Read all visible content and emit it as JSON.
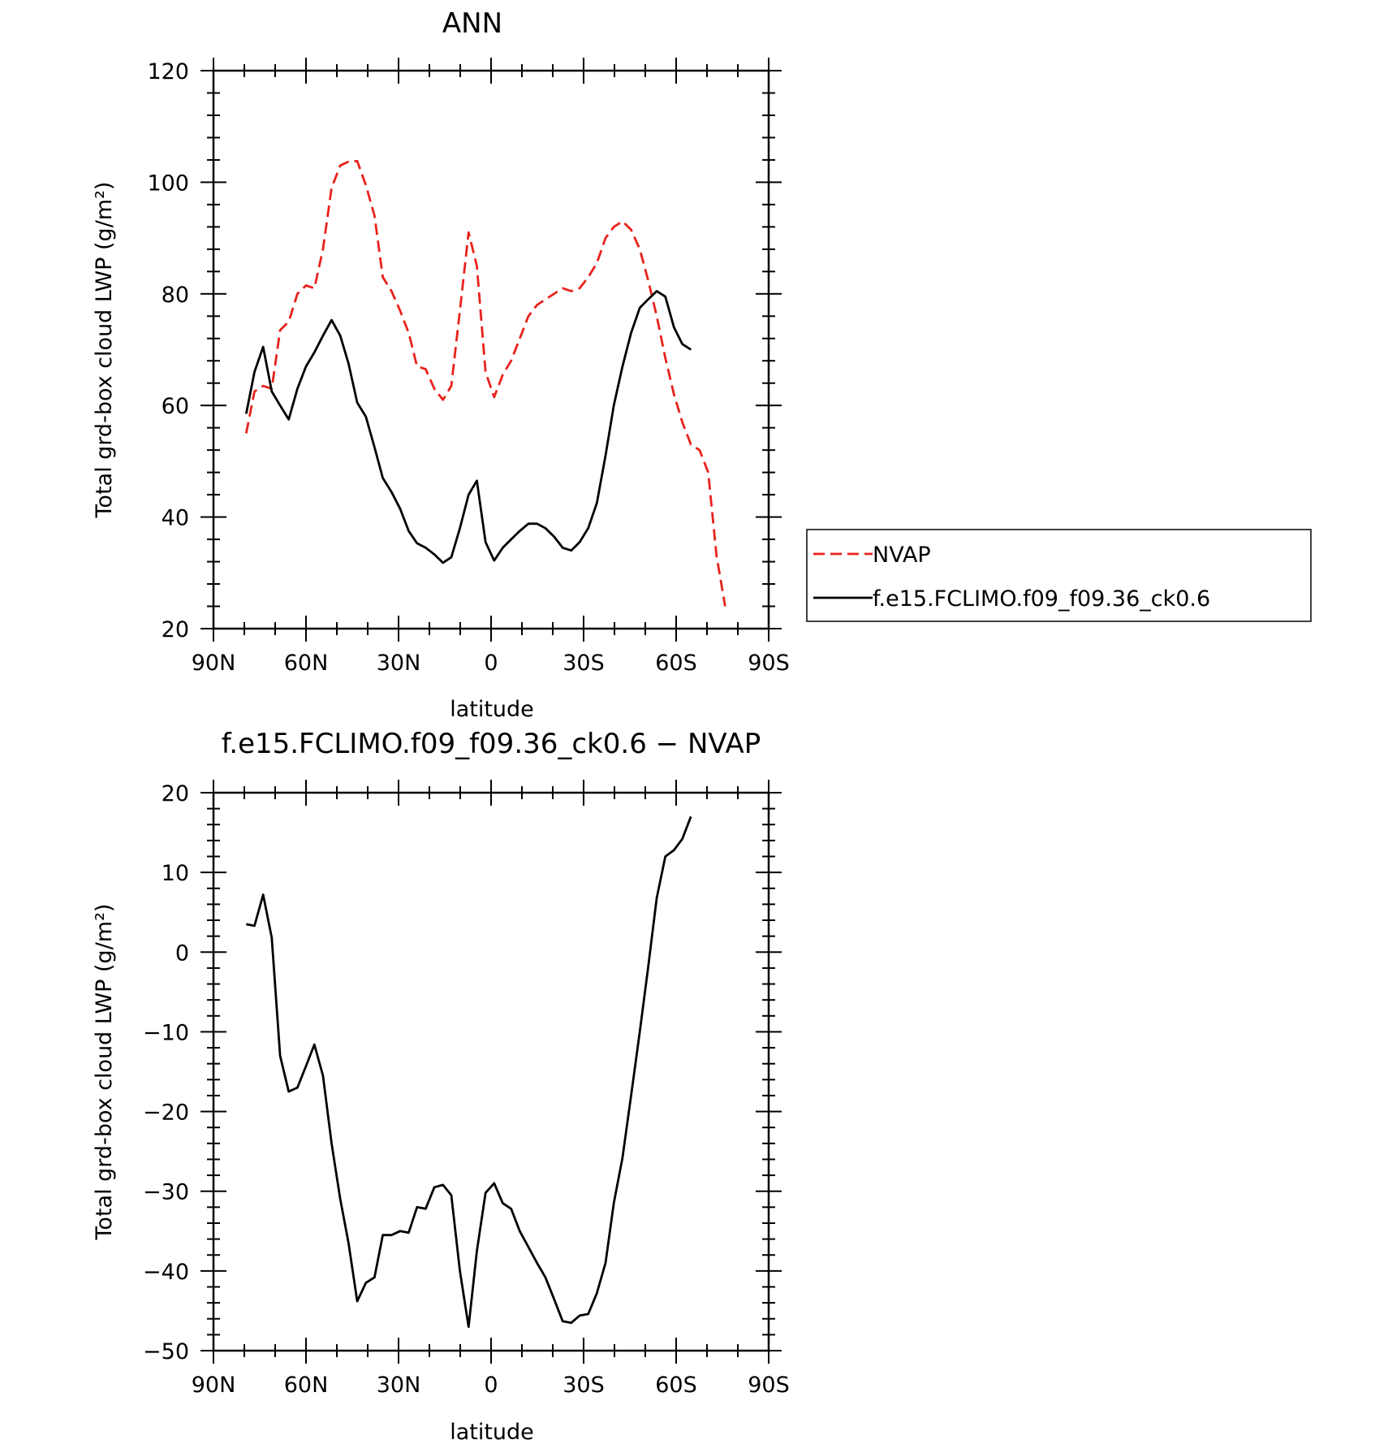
{
  "chart_data": [
    {
      "type": "line",
      "title": "ANN",
      "xlabel": "latitude",
      "ylabel": "Total grd-box cloud LWP (g/m²)",
      "xlim": [
        90,
        -90
      ],
      "ylim": [
        20,
        120
      ],
      "yticks": [
        20,
        40,
        60,
        80,
        100,
        120
      ],
      "xticks": [
        {
          "value": 90,
          "label": "90N"
        },
        {
          "value": 60,
          "label": "60N"
        },
        {
          "value": 30,
          "label": "30N"
        },
        {
          "value": 0,
          "label": "0"
        },
        {
          "value": -30,
          "label": "30S"
        },
        {
          "value": -60,
          "label": "60S"
        },
        {
          "value": -90,
          "label": "90S"
        }
      ],
      "grid": false,
      "legend": "right",
      "series": [
        {
          "name": "NVAP",
          "color": "#e8221c",
          "dash": true,
          "points": [
            [
              79.4,
              55
            ],
            [
              76.7,
              62.5
            ],
            [
              73.9,
              63.5
            ],
            [
              71.1,
              63
            ],
            [
              68.4,
              73.5
            ],
            [
              65.6,
              75
            ],
            [
              62.8,
              80
            ],
            [
              60.0,
              81.5
            ],
            [
              57.3,
              81
            ],
            [
              54.5,
              88
            ],
            [
              51.7,
              99
            ],
            [
              48.9,
              103
            ],
            [
              46.2,
              103.7
            ],
            [
              43.4,
              103.8
            ],
            [
              40.6,
              99.5
            ],
            [
              37.8,
              94
            ],
            [
              35.1,
              83
            ],
            [
              32.3,
              80.5
            ],
            [
              29.5,
              77
            ],
            [
              26.7,
              73
            ],
            [
              24.0,
              67
            ],
            [
              21.2,
              66.5
            ],
            [
              18.4,
              63
            ],
            [
              15.6,
              61
            ],
            [
              12.9,
              63.5
            ],
            [
              10.1,
              77
            ],
            [
              7.3,
              91
            ],
            [
              4.6,
              85
            ],
            [
              1.8,
              66
            ],
            [
              -1.0,
              61.5
            ],
            [
              -3.8,
              65.5
            ],
            [
              -6.5,
              68
            ],
            [
              -9.3,
              72
            ],
            [
              -12.1,
              76
            ],
            [
              -14.9,
              78
            ],
            [
              -17.6,
              79
            ],
            [
              -20.4,
              80
            ],
            [
              -23.2,
              81
            ],
            [
              -26.0,
              80.5
            ],
            [
              -28.7,
              81
            ],
            [
              -31.5,
              83
            ],
            [
              -34.3,
              85.5
            ],
            [
              -37.1,
              90
            ],
            [
              -39.8,
              92
            ],
            [
              -42.6,
              93
            ],
            [
              -45.4,
              91.5
            ],
            [
              -48.2,
              88
            ],
            [
              -50.9,
              82.5
            ],
            [
              -53.7,
              76
            ],
            [
              -56.5,
              68.5
            ],
            [
              -59.3,
              62
            ],
            [
              -62.0,
              57
            ],
            [
              -64.8,
              53
            ],
            [
              -67.6,
              52
            ],
            [
              -70.4,
              48
            ],
            [
              -73.1,
              33
            ],
            [
              -75.9,
              24
            ]
          ]
        },
        {
          "name": "f.e15.FCLIMO.f09_f09.36_ck0.6",
          "color": "#000000",
          "dash": false,
          "points": [
            [
              79.4,
              58.5
            ],
            [
              76.7,
              66
            ],
            [
              73.9,
              70.5
            ],
            [
              71.1,
              62.5
            ],
            [
              68.4,
              60
            ],
            [
              65.6,
              57.5
            ],
            [
              62.8,
              63
            ],
            [
              60.0,
              67
            ],
            [
              57.3,
              69.5
            ],
            [
              54.5,
              72.5
            ],
            [
              51.7,
              75.3
            ],
            [
              48.9,
              72.5
            ],
            [
              46.2,
              67.5
            ],
            [
              43.4,
              60.5
            ],
            [
              40.6,
              58
            ],
            [
              37.8,
              52.5
            ],
            [
              35.1,
              47
            ],
            [
              32.3,
              44.5
            ],
            [
              29.5,
              41.5
            ],
            [
              26.7,
              37.5
            ],
            [
              24.0,
              35.3
            ],
            [
              21.2,
              34.5
            ],
            [
              18.4,
              33.3
            ],
            [
              15.6,
              31.8
            ],
            [
              12.9,
              32.8
            ],
            [
              10.1,
              38
            ],
            [
              7.3,
              44
            ],
            [
              4.6,
              46.5
            ],
            [
              1.8,
              35.5
            ],
            [
              -1.0,
              32.2
            ],
            [
              -3.8,
              34.5
            ],
            [
              -6.5,
              36
            ],
            [
              -9.3,
              37.5
            ],
            [
              -12.1,
              38.8
            ],
            [
              -14.9,
              38.8
            ],
            [
              -17.6,
              38
            ],
            [
              -20.4,
              36.5
            ],
            [
              -23.2,
              34.5
            ],
            [
              -26.0,
              34
            ],
            [
              -28.7,
              35.5
            ],
            [
              -31.5,
              38
            ],
            [
              -34.3,
              42.5
            ],
            [
              -37.1,
              51
            ],
            [
              -39.8,
              60
            ],
            [
              -42.6,
              67
            ],
            [
              -45.4,
              73
            ],
            [
              -48.2,
              77.5
            ],
            [
              -50.9,
              79
            ],
            [
              -53.7,
              80.5
            ],
            [
              -56.5,
              79.5
            ],
            [
              -59.3,
              74
            ],
            [
              -62.0,
              71
            ],
            [
              -64.8,
              70
            ]
          ]
        }
      ]
    },
    {
      "type": "line",
      "title": "f.e15.FCLIMO.f09_f09.36_ck0.6 − NVAP",
      "xlabel": "latitude",
      "ylabel": "Total grd-box cloud LWP (g/m²)",
      "xlim": [
        90,
        -90
      ],
      "ylim": [
        -50,
        20
      ],
      "yticks": [
        -50,
        -40,
        -30,
        -20,
        -10,
        0,
        10,
        20
      ],
      "ytick_labels": [
        "−50",
        "−40",
        "−30",
        "−20",
        "−10",
        "0",
        "10",
        "20"
      ],
      "xticks": [
        {
          "value": 90,
          "label": "90N"
        },
        {
          "value": 60,
          "label": "60N"
        },
        {
          "value": 30,
          "label": "30N"
        },
        {
          "value": 0,
          "label": "0"
        },
        {
          "value": -30,
          "label": "30S"
        },
        {
          "value": -60,
          "label": "60S"
        },
        {
          "value": -90,
          "label": "90S"
        }
      ],
      "grid": false,
      "series": [
        {
          "color": "#000000",
          "dash": false,
          "points": [
            [
              79.4,
              3.5
            ],
            [
              76.7,
              3.3
            ],
            [
              73.9,
              7.2
            ],
            [
              71.1,
              1.8
            ],
            [
              68.4,
              -13
            ],
            [
              65.6,
              -17.5
            ],
            [
              62.8,
              -17
            ],
            [
              60.0,
              -14.3
            ],
            [
              57.3,
              -11.6
            ],
            [
              54.5,
              -15.5
            ],
            [
              51.7,
              -24
            ],
            [
              48.9,
              -31
            ],
            [
              46.2,
              -36.5
            ],
            [
              43.4,
              -43.8
            ],
            [
              40.6,
              -41.5
            ],
            [
              37.8,
              -40.8
            ],
            [
              35.1,
              -35.5
            ],
            [
              32.3,
              -35.5
            ],
            [
              29.5,
              -35
            ],
            [
              26.7,
              -35.2
            ],
            [
              24.0,
              -32
            ],
            [
              21.2,
              -32.2
            ],
            [
              18.4,
              -29.5
            ],
            [
              15.6,
              -29.2
            ],
            [
              12.9,
              -30.5
            ],
            [
              10.1,
              -40
            ],
            [
              7.3,
              -47
            ],
            [
              4.6,
              -37.5
            ],
            [
              1.8,
              -30.2
            ],
            [
              -1.0,
              -29
            ],
            [
              -3.8,
              -31.5
            ],
            [
              -6.5,
              -32.2
            ],
            [
              -9.3,
              -35
            ],
            [
              -12.1,
              -37
            ],
            [
              -14.9,
              -39
            ],
            [
              -17.6,
              -40.8
            ],
            [
              -20.4,
              -43.5
            ],
            [
              -23.2,
              -46.3
            ],
            [
              -26.0,
              -46.5
            ],
            [
              -28.7,
              -45.6
            ],
            [
              -31.5,
              -45.4
            ],
            [
              -34.3,
              -42.8
            ],
            [
              -37.1,
              -39
            ],
            [
              -39.8,
              -31.5
            ],
            [
              -42.6,
              -25.8
            ],
            [
              -45.4,
              -18
            ],
            [
              -48.2,
              -10
            ],
            [
              -50.9,
              -2
            ],
            [
              -53.7,
              6.8
            ],
            [
              -56.5,
              12
            ],
            [
              -59.3,
              12.8
            ],
            [
              -62.0,
              14.2
            ],
            [
              -64.8,
              17
            ]
          ]
        }
      ]
    }
  ]
}
